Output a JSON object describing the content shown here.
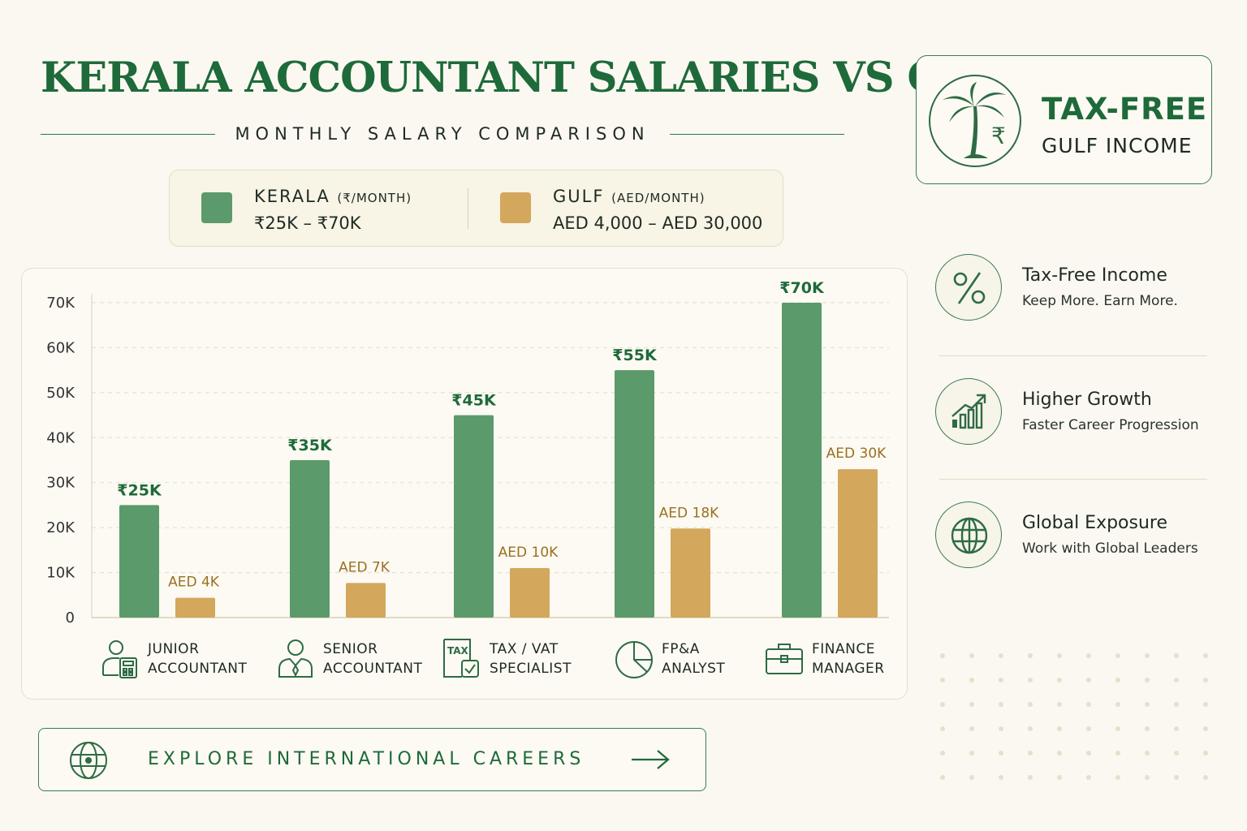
{
  "header": {
    "title": "KERALA ACCOUNTANT SALARIES VS GULF",
    "subtitle": "MONTHLY SALARY COMPARISON"
  },
  "legend": {
    "kerala": {
      "name": "KERALA",
      "unit": "(₹/MONTH)",
      "range": "₹25K – ₹70K",
      "color": "#5b9a6a"
    },
    "gulf": {
      "name": "GULF",
      "unit": "(AED/MONTH)",
      "range": "AED 4,000 – AED 30,000",
      "color": "#d3a75c"
    }
  },
  "chart_data": {
    "type": "bar",
    "categories": [
      "JUNIOR\nACCOUNTANT",
      "SENIOR\nACCOUNTANT",
      "TAX / VAT\nSPECIALIST",
      "FP&A\nANALYST",
      "FINANCE\nMANAGER"
    ],
    "category_icons": [
      "accountant-calculator-icon",
      "person-tie-icon",
      "tax-document-icon",
      "pie-chart-icon",
      "briefcase-icon"
    ],
    "ylim": [
      0,
      70000
    ],
    "y_ticks": [
      0,
      10000,
      20000,
      30000,
      40000,
      50000,
      60000,
      70000
    ],
    "y_tick_labels": [
      "0",
      "10K",
      "20K",
      "30K",
      "40K",
      "50K",
      "60K",
      "70K"
    ],
    "grid": true,
    "series": [
      {
        "name": "KERALA",
        "values": [
          25000,
          35000,
          45000,
          55000,
          70000
        ],
        "labels": [
          "₹25K",
          "₹35K",
          "₹45K",
          "₹55K",
          "₹70K"
        ],
        "color": "#5b9a6a"
      },
      {
        "name": "GULF",
        "values": [
          4000,
          7000,
          10000,
          18000,
          30000
        ],
        "labels": [
          "AED 4K",
          "AED 7K",
          "AED 10K",
          "AED 18K",
          "AED 30K"
        ],
        "color": "#d3a75c"
      }
    ],
    "note": "Gulf bars are drawn on the shared axis at 1 AED ≈ 1.1K ₹-axis units scale as shown"
  },
  "cta": {
    "label": "EXPLORE INTERNATIONAL CAREERS",
    "icon": "globe-icon"
  },
  "tax_free_card": {
    "line1": "TAX-FREE",
    "line2": "GULF INCOME",
    "icon": "palm-rupee-icon"
  },
  "features": [
    {
      "title": "Tax-Free Income",
      "desc": "Keep More. Earn More.",
      "icon": "percent-icon"
    },
    {
      "title": "Higher Growth",
      "desc": "Faster Career Progression",
      "icon": "growth-chart-icon"
    },
    {
      "title": "Global Exposure",
      "desc": "Work with Global Leaders",
      "icon": "globe-icon"
    }
  ],
  "colors": {
    "primary": "#1e6a3a",
    "kerala": "#5b9a6a",
    "gulf": "#d3a75c",
    "background": "#fbf8f1"
  }
}
